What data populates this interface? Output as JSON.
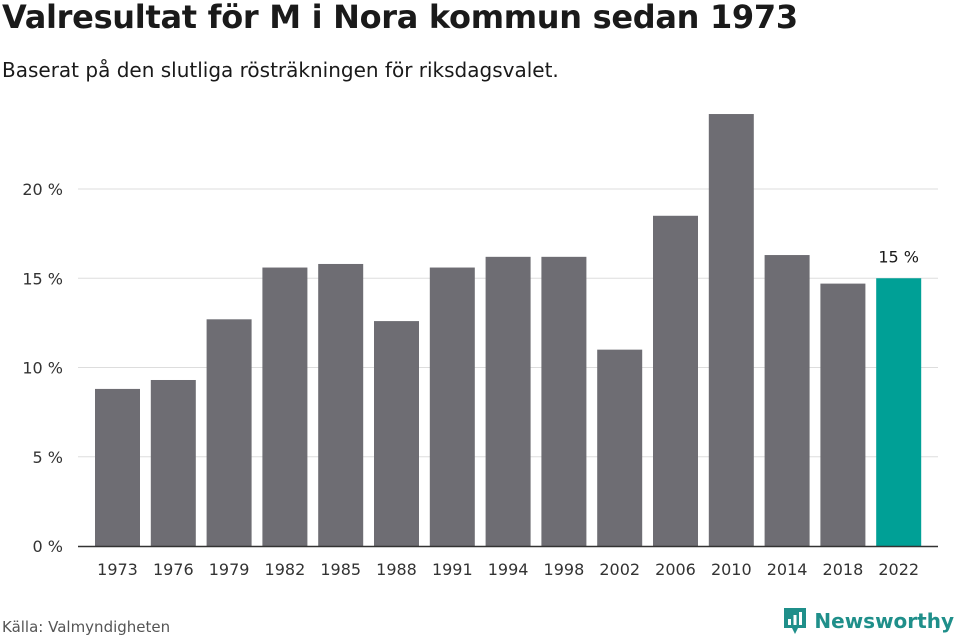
{
  "title": "Valresultat för M i Nora kommun sedan 1973",
  "subtitle": "Baserat på den slutliga rösträkningen för riksdagsvalet.",
  "source": "Källa: Valmyndigheten",
  "brand": {
    "name": "Newsworthy",
    "icon": "newsworthy-logo-icon"
  },
  "colors": {
    "bar": "#6e6d73",
    "highlight": "#00a096",
    "grid": "#dddddd",
    "axis": "#333333",
    "brand": "#1f8f8a"
  },
  "chart_data": {
    "type": "bar",
    "categories": [
      "1973",
      "1976",
      "1979",
      "1982",
      "1985",
      "1988",
      "1991",
      "1994",
      "1998",
      "2002",
      "2006",
      "2010",
      "2014",
      "2018",
      "2022"
    ],
    "values": [
      8.8,
      9.3,
      12.7,
      15.6,
      15.8,
      12.6,
      15.6,
      16.2,
      16.2,
      11.0,
      18.5,
      24.2,
      16.3,
      14.7,
      15.0
    ],
    "highlight_index": 14,
    "annotations": [
      {
        "category": "2022",
        "text": "15 %"
      }
    ],
    "yticks": [
      {
        "value": 0,
        "label": "0 %"
      },
      {
        "value": 5,
        "label": "5 %"
      },
      {
        "value": 10,
        "label": "10 %"
      },
      {
        "value": 15,
        "label": "15 %"
      },
      {
        "value": 20,
        "label": "20 %"
      }
    ],
    "ylim": [
      0,
      25
    ],
    "grid": true,
    "xlabel": "",
    "ylabel": ""
  }
}
